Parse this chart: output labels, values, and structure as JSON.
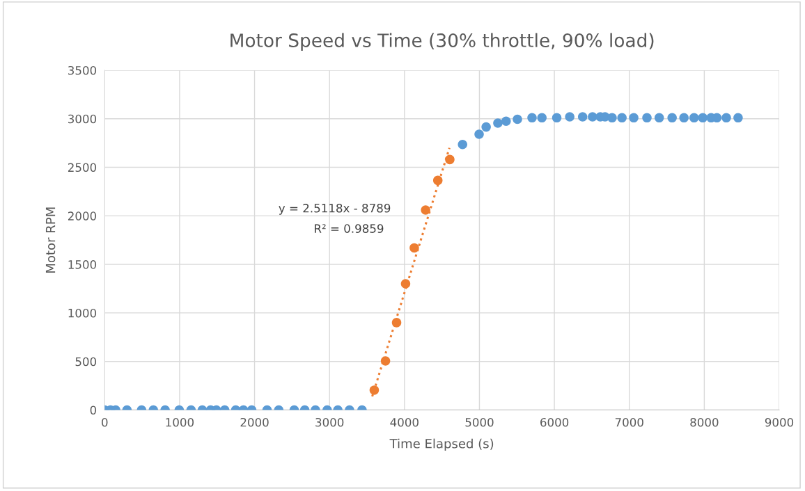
{
  "chart_data": {
    "type": "scatter",
    "title": "Motor Speed vs Time (30% throttle, 90% load)",
    "xlabel": "Time Elapsed (s)",
    "ylabel": "Motor RPM",
    "xlim": [
      0,
      9000
    ],
    "xticks": [
      0,
      1000,
      2000,
      3000,
      4000,
      5000,
      6000,
      7000,
      8000,
      9000
    ],
    "ylim": [
      0,
      3500
    ],
    "yticks": [
      0,
      500,
      1000,
      1500,
      2000,
      2500,
      3000,
      3500
    ],
    "grid": true,
    "marker": "circle",
    "series": [
      {
        "color": "#5b9bd5",
        "x": [
          0,
          78,
          147,
          298,
          493,
          650,
          807,
          995,
          1153,
          1303,
          1414,
          1491,
          1602,
          1749,
          1852,
          1962,
          2167,
          2323,
          2529,
          2670,
          2812,
          2969,
          3111,
          3267,
          3434,
          4775,
          4996,
          5090,
          5246,
          5356,
          5507,
          5702,
          5834,
          6032,
          6205,
          6377,
          6509,
          6613,
          6676,
          6770,
          6902,
          7059,
          7235,
          7399,
          7571,
          7729,
          7864,
          7980,
          8091,
          8168,
          8294,
          8451
        ],
        "values": [
          0,
          0,
          0,
          0,
          0,
          0,
          0,
          0,
          0,
          0,
          0,
          0,
          0,
          0,
          0,
          0,
          0,
          0,
          0,
          0,
          0,
          0,
          0,
          0,
          0,
          2735,
          2840,
          2915,
          2955,
          2975,
          2995,
          3010,
          3010,
          3010,
          3020,
          3020,
          3020,
          3020,
          3020,
          3010,
          3010,
          3010,
          3010,
          3010,
          3010,
          3010,
          3010,
          3010,
          3010,
          3010,
          3010,
          3010
        ]
      },
      {
        "color": "#ed7d31",
        "x": [
          3597,
          3747,
          3895,
          4015,
          4131,
          4282,
          4445,
          4605
        ],
        "values": [
          205,
          505,
          900,
          1300,
          1670,
          2060,
          2365,
          2580
        ]
      },
      {
        "type": "line",
        "color": "#ed7d31",
        "line_style": "dotted",
        "marker": "none",
        "x": [
          3570,
          4600
        ],
        "values": [
          140,
          2700
        ]
      }
    ],
    "annotations": [
      "y = 2.5118x - 8789",
      "R² = 0.9859"
    ]
  }
}
